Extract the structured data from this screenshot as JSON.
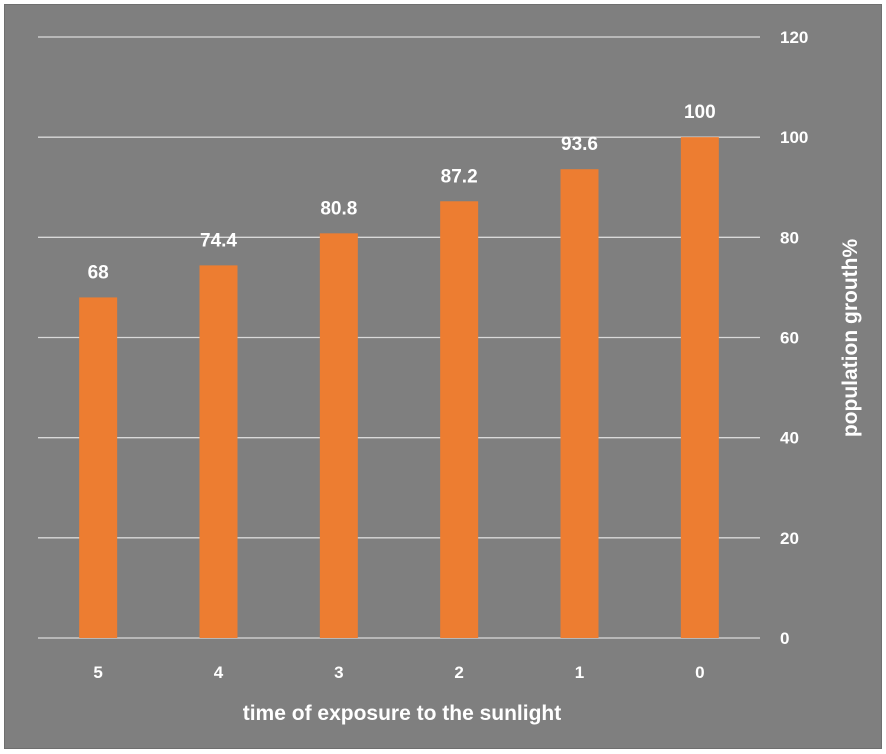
{
  "chart_data": {
    "type": "bar",
    "categories": [
      "5",
      "4",
      "3",
      "2",
      "1",
      "0"
    ],
    "values": [
      68,
      74.4,
      80.8,
      87.2,
      93.6,
      100
    ],
    "data_labels": [
      "68",
      "74.4",
      "80.8",
      "87.2",
      "93.6",
      "100"
    ],
    "xlabel": "time of exposure to the sunlight",
    "ylabel": "population grouth%",
    "ylim": [
      0,
      120
    ],
    "yticks": [
      0,
      20,
      40,
      60,
      80,
      100,
      120
    ],
    "y_axis_side": "right",
    "grid": true,
    "legend": "none",
    "colors": {
      "bar": "#ed7d31",
      "background": "#7f7f7f",
      "gridline": "#d9d9d9",
      "text": "#ffffff"
    }
  }
}
